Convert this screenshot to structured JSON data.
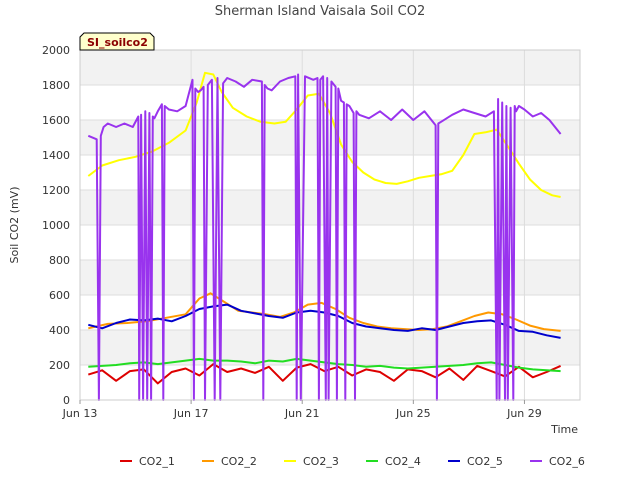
{
  "chart_data": {
    "type": "line",
    "title": "Sherman Island Vaisala Soil CO2",
    "xlabel": "Time",
    "ylabel": "Soil CO2 (mV)",
    "site_badge": "SI_soilco2",
    "ylim": [
      0,
      2000
    ],
    "xlim": [
      13,
      31
    ],
    "y_ticks": [
      0,
      200,
      400,
      600,
      800,
      1000,
      1200,
      1400,
      1600,
      1800,
      2000
    ],
    "x_ticks": [
      {
        "value": 13,
        "label": "Jun 13"
      },
      {
        "value": 17,
        "label": "Jun 17"
      },
      {
        "value": 21,
        "label": "Jun 21"
      },
      {
        "value": 25,
        "label": "Jun 25"
      },
      {
        "value": 29,
        "label": "Jun 29"
      }
    ],
    "grid": true,
    "legend_position": "bottom",
    "series": [
      {
        "name": "CO2_1",
        "color": "#dd0000",
        "x": [
          13.3,
          13.8,
          14.3,
          14.8,
          15.3,
          15.8,
          16.3,
          16.8,
          17.3,
          17.8,
          18.3,
          18.8,
          19.3,
          19.8,
          20.3,
          20.8,
          21.3,
          21.8,
          22.3,
          22.8,
          23.3,
          23.8,
          24.3,
          24.8,
          25.3,
          25.8,
          26.3,
          26.8,
          27.3,
          27.8,
          28.3,
          28.8,
          29.3,
          29.8,
          30.3
        ],
        "values": [
          145,
          170,
          110,
          165,
          175,
          95,
          160,
          180,
          140,
          205,
          160,
          180,
          155,
          190,
          110,
          185,
          205,
          165,
          190,
          140,
          175,
          160,
          110,
          175,
          165,
          130,
          180,
          115,
          195,
          165,
          135,
          190,
          130,
          160,
          195
        ]
      },
      {
        "name": "CO2_2",
        "color": "#ff9900",
        "x": [
          13.3,
          14,
          14.7,
          15.4,
          16.1,
          16.8,
          17.3,
          17.7,
          18.2,
          18.7,
          19.2,
          19.7,
          20.2,
          20.7,
          21.2,
          21.7,
          22.2,
          22.7,
          23.2,
          23.7,
          24.2,
          24.7,
          25.2,
          25.7,
          26.2,
          26.7,
          27.2,
          27.7,
          28.2,
          28.7,
          29.2,
          29.7,
          30.3
        ],
        "values": [
          410,
          435,
          440,
          450,
          470,
          490,
          580,
          610,
          560,
          510,
          500,
          490,
          475,
          500,
          545,
          555,
          520,
          470,
          440,
          420,
          410,
          405,
          400,
          405,
          420,
          450,
          480,
          500,
          490,
          460,
          425,
          405,
          395
        ]
      },
      {
        "name": "CO2_3",
        "color": "#ffff00",
        "x": [
          13.3,
          13.8,
          14.4,
          15,
          15.6,
          16.2,
          16.8,
          17.2,
          17.5,
          17.8,
          18.1,
          18.5,
          19,
          19.5,
          20,
          20.4,
          20.8,
          21.2,
          21.6,
          22,
          22.4,
          22.8,
          23.2,
          23.6,
          24,
          24.4,
          24.8,
          25.2,
          25.6,
          26,
          26.4,
          26.8,
          27.2,
          27.6,
          28,
          28.4,
          28.8,
          29.2,
          29.6,
          30,
          30.3
        ],
        "values": [
          1280,
          1340,
          1370,
          1390,
          1420,
          1470,
          1540,
          1700,
          1870,
          1860,
          1760,
          1670,
          1620,
          1590,
          1580,
          1590,
          1660,
          1740,
          1750,
          1640,
          1460,
          1360,
          1300,
          1260,
          1240,
          1235,
          1250,
          1270,
          1280,
          1290,
          1310,
          1400,
          1520,
          1530,
          1545,
          1450,
          1350,
          1260,
          1200,
          1170,
          1160
        ]
      },
      {
        "name": "CO2_4",
        "color": "#22dd22",
        "x": [
          13.3,
          13.8,
          14.3,
          14.8,
          15.3,
          15.8,
          16.3,
          16.8,
          17.3,
          17.8,
          18.3,
          18.8,
          19.3,
          19.8,
          20.3,
          20.8,
          21.3,
          21.8,
          22.3,
          22.8,
          23.3,
          23.8,
          24.3,
          24.8,
          25.3,
          25.8,
          26.3,
          26.8,
          27.3,
          27.8,
          28.3,
          28.8,
          29.3,
          29.8,
          30.3
        ],
        "values": [
          190,
          195,
          200,
          210,
          215,
          205,
          215,
          225,
          235,
          225,
          225,
          220,
          210,
          225,
          220,
          235,
          225,
          215,
          205,
          200,
          190,
          195,
          185,
          180,
          185,
          190,
          195,
          200,
          210,
          215,
          200,
          185,
          175,
          170,
          165
        ]
      },
      {
        "name": "CO2_5",
        "color": "#0000cc",
        "x": [
          13.3,
          13.8,
          14.3,
          14.8,
          15.3,
          15.8,
          16.3,
          16.8,
          17.3,
          17.8,
          18.3,
          18.8,
          19.3,
          19.8,
          20.3,
          20.8,
          21.3,
          21.8,
          22.3,
          22.8,
          23.3,
          23.8,
          24.3,
          24.8,
          25.3,
          25.8,
          26.3,
          26.8,
          27.3,
          27.8,
          28.3,
          28.8,
          29.3,
          29.8,
          30.3
        ],
        "values": [
          430,
          410,
          440,
          460,
          455,
          465,
          450,
          480,
          520,
          535,
          545,
          510,
          495,
          480,
          470,
          500,
          510,
          500,
          480,
          440,
          420,
          410,
          400,
          395,
          410,
          400,
          420,
          440,
          450,
          455,
          430,
          395,
          390,
          370,
          355
        ]
      },
      {
        "name": "CO2_6",
        "color": "#9933ee",
        "x": [
          13.3,
          13.6,
          13.68,
          13.75,
          13.85,
          14,
          14.3,
          14.6,
          14.9,
          15.1,
          15.13,
          15.2,
          15.27,
          15.35,
          15.42,
          15.5,
          15.56,
          15.62,
          15.68,
          15.8,
          15.95,
          16.0,
          16.05,
          16.2,
          16.5,
          16.8,
          17.05,
          17.1,
          17.15,
          17.25,
          17.35,
          17.45,
          17.5,
          17.6,
          17.75,
          17.85,
          17.95,
          18.05,
          18.15,
          18.3,
          18.6,
          18.9,
          19.2,
          19.55,
          19.6,
          19.65,
          19.75,
          19.9,
          20.2,
          20.5,
          20.75,
          20.8,
          20.85,
          20.95,
          21.1,
          21.4,
          21.55,
          21.6,
          21.65,
          21.75,
          21.85,
          21.9,
          21.95,
          22.05,
          22.2,
          22.25,
          22.3,
          22.4,
          22.5,
          22.55,
          22.6,
          22.7,
          22.85,
          22.9,
          22.95,
          23.05,
          23.4,
          23.8,
          24.2,
          24.6,
          25.0,
          25.4,
          25.8,
          25.85,
          25.9,
          26.0,
          26.4,
          26.8,
          27.2,
          27.6,
          27.9,
          28.0,
          28.05,
          28.1,
          28.2,
          28.3,
          28.35,
          28.4,
          28.5,
          28.6,
          28.65,
          28.7,
          28.8,
          29.0,
          29.3,
          29.6,
          29.9,
          30.3
        ],
        "values": [
          1510,
          1490,
          0,
          1510,
          1560,
          1580,
          1560,
          1580,
          1560,
          1620,
          0,
          1630,
          0,
          1650,
          0,
          1640,
          0,
          1620,
          1610,
          1650,
          1690,
          0,
          1680,
          1660,
          1650,
          1680,
          1830,
          0,
          1780,
          1760,
          1770,
          1790,
          0,
          1800,
          1830,
          0,
          1840,
          0,
          1810,
          1840,
          1820,
          1790,
          1830,
          1820,
          0,
          1800,
          1780,
          1770,
          1820,
          1840,
          1850,
          0,
          1860,
          0,
          1850,
          1830,
          1840,
          0,
          1830,
          1850,
          0,
          1840,
          0,
          1820,
          1790,
          0,
          1780,
          1710,
          1700,
          0,
          1690,
          1680,
          1640,
          0,
          1650,
          1630,
          1610,
          1650,
          1600,
          1660,
          1600,
          1650,
          1570,
          0,
          1580,
          1590,
          1630,
          1660,
          1640,
          1620,
          1650,
          0,
          1720,
          0,
          1700,
          0,
          1680,
          0,
          1670,
          0,
          1680,
          1650,
          1680,
          1660,
          1620,
          1640,
          1600,
          1520
        ]
      }
    ]
  }
}
